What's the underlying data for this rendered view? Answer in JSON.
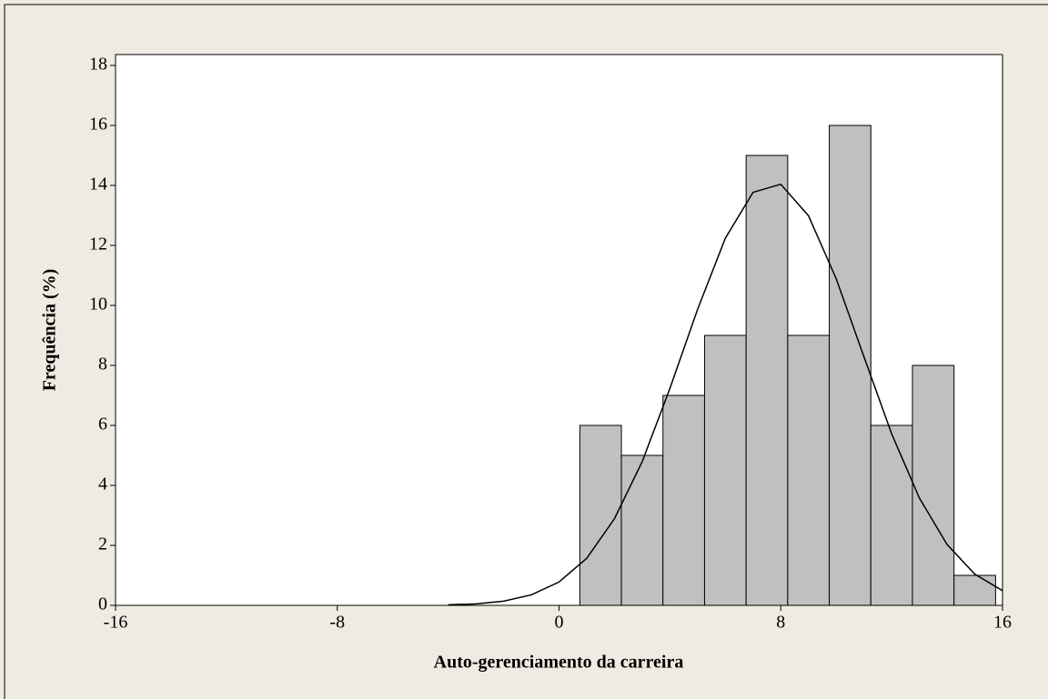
{
  "chart_data": {
    "type": "histogram",
    "x_label": "Auto-gerenciamento da carreira",
    "y_label": "Frequência (%)",
    "bins": [
      0.75,
      2.25,
      3.75,
      5.25,
      6.75,
      8.25,
      9.75,
      11.25,
      12.75,
      14.25,
      15.75
    ],
    "values": [
      6,
      5,
      7,
      9,
      15,
      9,
      16,
      6,
      8,
      1
    ],
    "color": "#c0c0c0",
    "fit": {
      "x": [
        -4,
        -3,
        -2,
        -1,
        0,
        1,
        2,
        3,
        4,
        5,
        6,
        7,
        8,
        9,
        10,
        11,
        12,
        13,
        14,
        15,
        16
      ],
      "y": [
        0.02,
        0.05,
        0.14,
        0.35,
        0.78,
        1.57,
        2.89,
        4.79,
        7.23,
        9.87,
        12.24,
        13.77,
        14.04,
        12.99,
        10.89,
        8.29,
        5.72,
        3.58,
        2.03,
        1.04,
        0.49
      ],
      "color": "#000000"
    },
    "xlim": [
      -16,
      16
    ],
    "xticks": [
      -16,
      -8,
      0,
      8,
      16
    ],
    "ylim": [
      0,
      18
    ],
    "yticks": [
      0,
      2,
      4,
      6,
      8,
      10,
      12,
      14,
      16,
      18
    ]
  }
}
